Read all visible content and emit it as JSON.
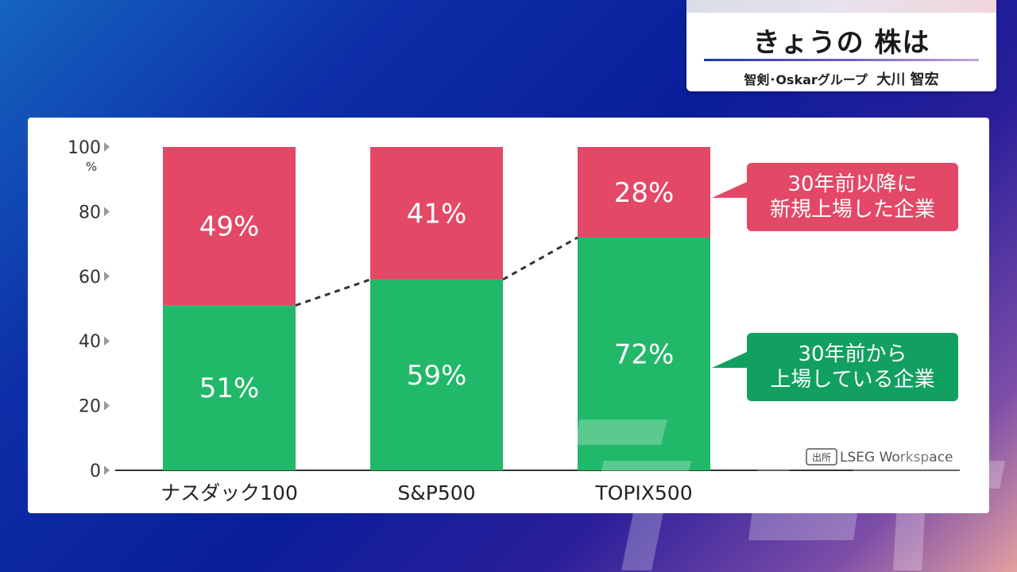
{
  "header": {
    "title": "きょうの 株は",
    "subtitle": "智剣･Oskarグループ",
    "presenter": "大川 智宏"
  },
  "colors": {
    "new_listed": "#e34967",
    "long_listed": "#22b86a",
    "long_callout": "#12a060",
    "axis": "#333333"
  },
  "chart_data": {
    "type": "bar",
    "stacked": true,
    "categories": [
      "ナスダック100",
      "S&P500",
      "TOPIX500"
    ],
    "series": [
      {
        "key": "long",
        "values": [
          51,
          59,
          72
        ],
        "labels": [
          "51%",
          "59%",
          "72%"
        ]
      },
      {
        "key": "new",
        "values": [
          49,
          41,
          28
        ],
        "labels": [
          "49%",
          "41%",
          "28%"
        ]
      }
    ],
    "ylim": [
      0,
      100
    ],
    "yticks": [
      "0",
      "20",
      "40",
      "60",
      "80",
      "100"
    ],
    "y_unit": "%",
    "grid": false,
    "connector_lines": "dashed",
    "callouts": {
      "new": "30年前以降に\n新規上場した企業",
      "long": "30年前から\n上場している企業"
    },
    "source_tag": "出所",
    "source": "LSEG Workspace"
  }
}
